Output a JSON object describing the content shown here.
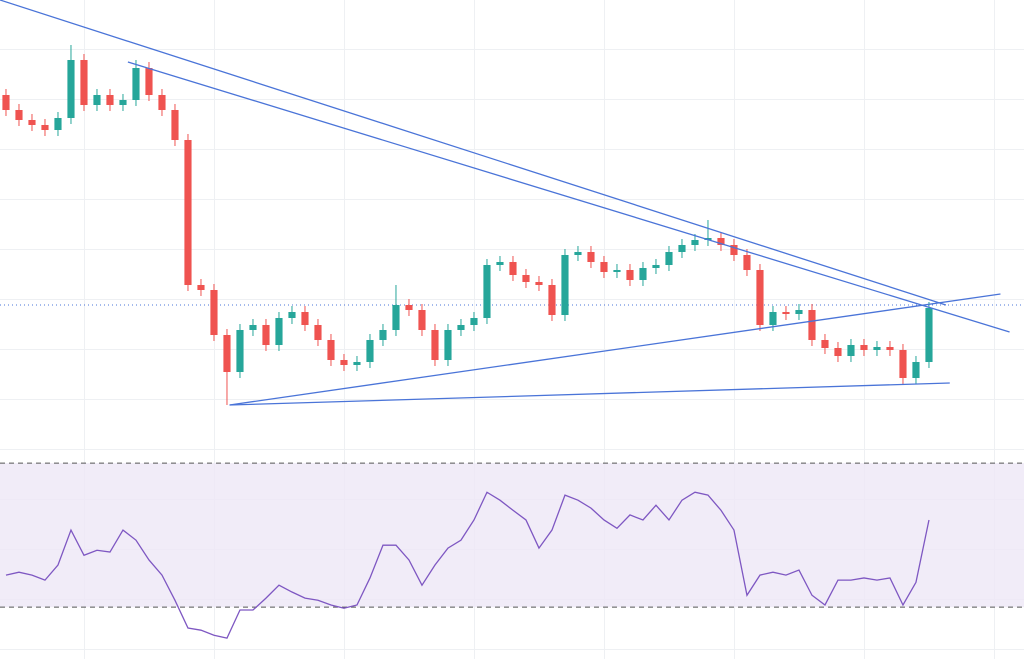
{
  "chart_data": [
    {
      "type": "candlestick",
      "up_color": "#26a69a",
      "down_color": "#ef5350",
      "line_color": "#4a74d8",
      "xlim": [
        -0.46,
        78.31
      ],
      "ylim": [
        0,
        460
      ],
      "open": [
        365,
        350,
        340,
        335,
        330,
        342,
        400,
        355,
        365,
        355,
        360,
        392,
        365,
        350,
        320,
        175,
        170,
        125,
        88,
        130,
        135,
        115,
        142,
        148,
        135,
        120,
        100,
        95,
        98,
        120,
        130,
        155,
        150,
        130,
        100,
        130,
        135,
        142,
        195,
        198,
        185,
        178,
        175,
        145,
        205,
        208,
        198,
        188,
        190,
        180,
        192,
        195,
        208,
        215,
        220,
        222,
        215,
        205,
        190,
        135,
        148,
        146,
        150,
        120,
        112,
        104,
        115,
        110,
        113,
        110,
        82,
        98
      ],
      "high": [
        371,
        356,
        346,
        341,
        348,
        415,
        406,
        371,
        371,
        366,
        400,
        398,
        371,
        356,
        326,
        181,
        176,
        131,
        136,
        141,
        141,
        148,
        154,
        154,
        141,
        126,
        106,
        104,
        126,
        136,
        175,
        161,
        156,
        136,
        136,
        141,
        148,
        201,
        204,
        204,
        191,
        184,
        181,
        211,
        214,
        214,
        204,
        196,
        196,
        198,
        201,
        214,
        221,
        226,
        240,
        228,
        221,
        211,
        196,
        154,
        154,
        156,
        156,
        126,
        118,
        121,
        121,
        119,
        119,
        116,
        104,
        158
      ],
      "low": [
        344,
        334,
        329,
        324,
        324,
        336,
        349,
        349,
        349,
        349,
        354,
        359,
        344,
        314,
        169,
        164,
        119,
        55,
        82,
        124,
        109,
        109,
        136,
        129,
        114,
        94,
        89,
        89,
        92,
        114,
        124,
        144,
        124,
        94,
        94,
        124,
        129,
        136,
        189,
        179,
        172,
        169,
        139,
        139,
        199,
        192,
        182,
        182,
        174,
        174,
        186,
        189,
        202,
        209,
        214,
        209,
        199,
        184,
        129,
        129,
        140,
        140,
        114,
        106,
        98,
        98,
        104,
        104,
        104,
        75,
        76,
        92
      ],
      "close": [
        350,
        340,
        335,
        330,
        342,
        400,
        355,
        365,
        355,
        360,
        392,
        365,
        350,
        320,
        175,
        170,
        125,
        88,
        130,
        135,
        115,
        142,
        148,
        135,
        120,
        100,
        95,
        98,
        120,
        130,
        155,
        150,
        130,
        100,
        130,
        135,
        142,
        195,
        198,
        185,
        178,
        175,
        145,
        205,
        208,
        198,
        188,
        190,
        180,
        192,
        195,
        208,
        215,
        220,
        222,
        215,
        205,
        190,
        135,
        148,
        146,
        150,
        120,
        112,
        104,
        115,
        110,
        113,
        110,
        82,
        98,
        152
      ],
      "trend_lines": [
        {
          "x": [
            -0.46,
            72.3
          ],
          "y": [
            460,
            155
          ]
        },
        {
          "x": [
            9.38,
            77.2
          ],
          "y": [
            398,
            128
          ]
        },
        {
          "x": [
            17.2,
            76.5
          ],
          "y": [
            55,
            166
          ]
        },
        {
          "x": [
            17.2,
            72.6
          ],
          "y": [
            55,
            77
          ]
        }
      ],
      "price_line": 155
    },
    {
      "type": "line",
      "color": "#7e57c2",
      "band_color": "#ede7f6",
      "xlim": [
        -0.46,
        78.31
      ],
      "ylim": [
        15.6,
        70.3
      ],
      "levels": [
        30,
        70
      ],
      "values": [
        38.9,
        39.7,
        38.9,
        37.5,
        41.7,
        51.4,
        44.4,
        45.8,
        45.3,
        51.4,
        48.6,
        43.1,
        38.9,
        31.9,
        24.2,
        23.6,
        22.2,
        21.4,
        29.2,
        29.2,
        32.5,
        36.1,
        34.2,
        32.5,
        31.9,
        30.6,
        29.7,
        30.6,
        38.1,
        47.2,
        47.2,
        43.1,
        36.1,
        41.7,
        46.4,
        48.6,
        54.2,
        61.9,
        59.7,
        56.9,
        54.2,
        46.4,
        51.4,
        61.1,
        59.7,
        57.5,
        54.2,
        51.9,
        55.6,
        54.2,
        58.3,
        54.2,
        59.7,
        61.9,
        61.1,
        56.9,
        51.4,
        33.3,
        38.9,
        39.7,
        38.9,
        40.3,
        33.3,
        30.6,
        37.5,
        37.5,
        38.1,
        37.5,
        38.1,
        30.6,
        36.9,
        54.2
      ]
    }
  ]
}
